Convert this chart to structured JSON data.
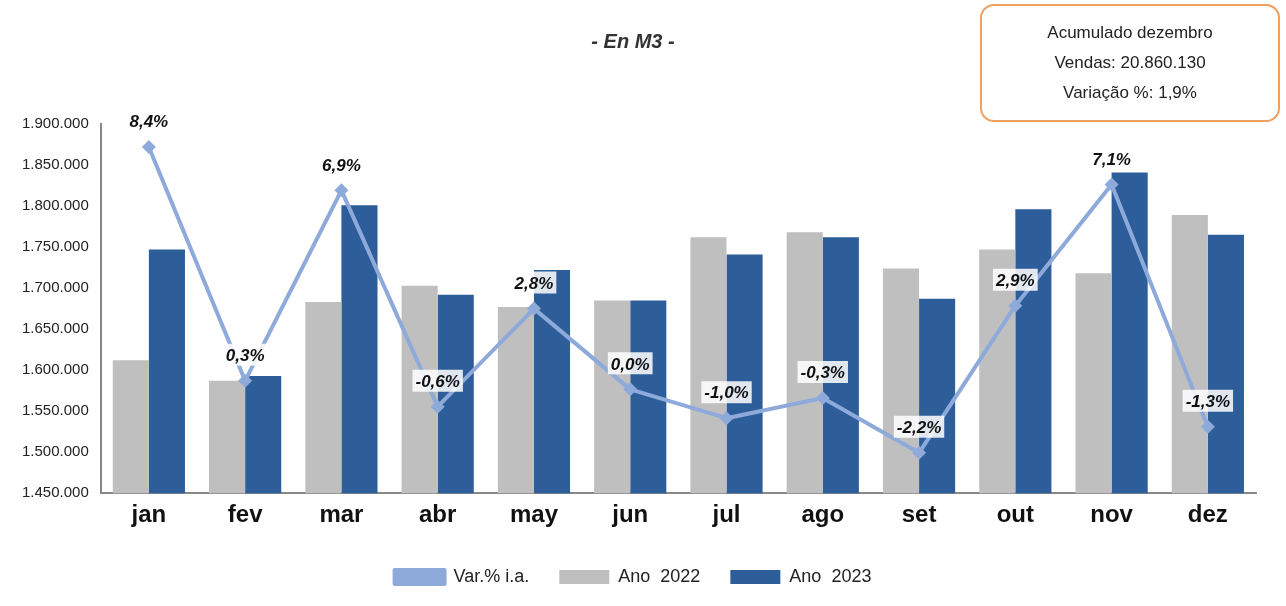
{
  "chart_data": {
    "type": "bar",
    "title": "- En M3 -",
    "categories": [
      "jan",
      "fev",
      "mar",
      "abr",
      "may",
      "jun",
      "jul",
      "ago",
      "set",
      "out",
      "nov",
      "dez"
    ],
    "series": [
      {
        "name": "Ano  2022",
        "color": "#bfbfbf",
        "values": [
          1612000,
          1587000,
          1683000,
          1703000,
          1677000,
          1685000,
          1762000,
          1768000,
          1724000,
          1747000,
          1718000,
          1789000
        ]
      },
      {
        "name": "Ano  2023",
        "color": "#2e5e9a",
        "values": [
          1747000,
          1593000,
          1801000,
          1692000,
          1722000,
          1685000,
          1741000,
          1762000,
          1687000,
          1796000,
          1841000,
          1765000
        ]
      },
      {
        "name": "Var.% i.a.",
        "type": "line",
        "axis": "y2",
        "color": "#8eaadb",
        "values": [
          8.4,
          0.3,
          6.9,
          -0.6,
          2.8,
          0.0,
          -1.0,
          -0.3,
          -2.2,
          2.9,
          7.1,
          -1.3
        ],
        "value_labels": [
          "8,4%",
          "0,3%",
          "6,9%",
          "-0,6%",
          "2,8%",
          "0,0%",
          "-1,0%",
          "-0,3%",
          "-2,2%",
          "2,9%",
          "7,1%",
          "-1,3%"
        ]
      }
    ],
    "ylim": [
      1450000,
      1900000
    ],
    "yticks": [
      {
        "value": 1450000,
        "label": "1.450.000"
      },
      {
        "value": 1500000,
        "label": "1.500.000"
      },
      {
        "value": 1550000,
        "label": "1.550.000"
      },
      {
        "value": 1600000,
        "label": "1.600.000"
      },
      {
        "value": 1650000,
        "label": "1.650.000"
      },
      {
        "value": 1700000,
        "label": "1.700.000"
      },
      {
        "value": 1750000,
        "label": "1.750.000"
      },
      {
        "value": 1800000,
        "label": "1.800.000"
      },
      {
        "value": 1850000,
        "label": "1.850.000"
      },
      {
        "value": 1900000,
        "label": "1.900.000"
      }
    ],
    "y2lim": [
      -3.6,
      9.2
    ],
    "marker": "diamond",
    "line_style": "solid",
    "legend": "bottom",
    "grid": false,
    "annotations": [
      "Acumulado dezembro",
      "Vendas: 20.860.130",
      "Variação %: 1,9%"
    ]
  }
}
